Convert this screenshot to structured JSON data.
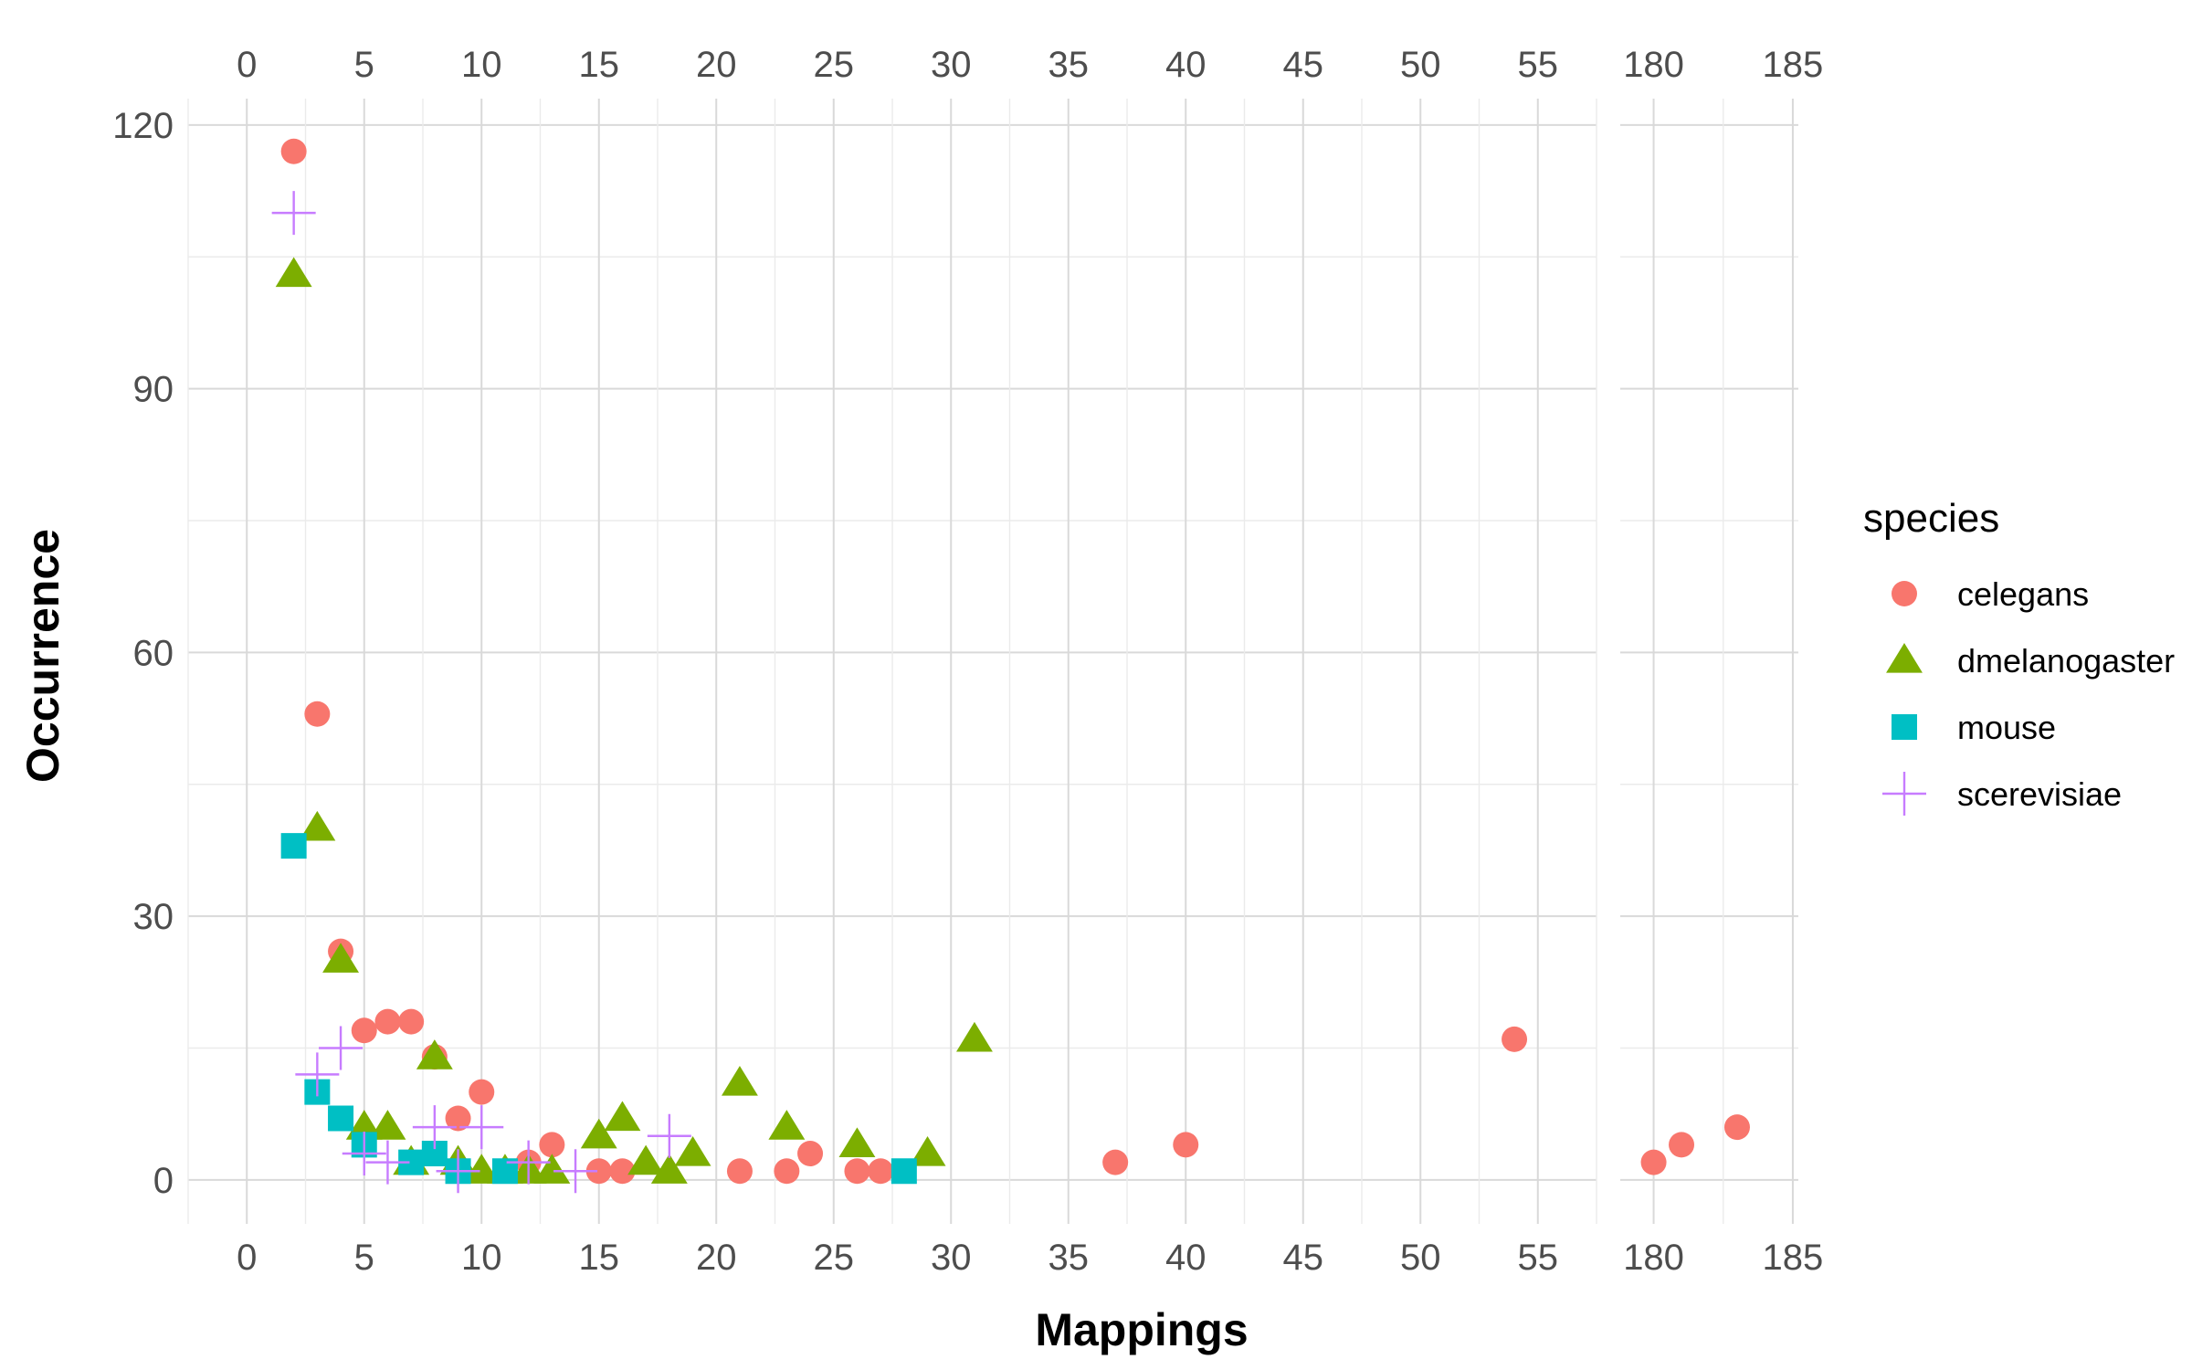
{
  "chart_data": {
    "type": "scatter",
    "title": "",
    "xlabel": "Mappings",
    "ylabel": "Occurrence",
    "grid": true,
    "legend": {
      "title": "species",
      "placement": "right"
    },
    "x_axis_break": true,
    "panels": [
      {
        "xlim": [
          -2.5,
          57.5
        ],
        "xticks": [
          0,
          5,
          10,
          15,
          20,
          25,
          30,
          35,
          40,
          45,
          50,
          55
        ]
      },
      {
        "xlim": [
          178.8,
          185.2
        ],
        "xticks": [
          180,
          185
        ]
      }
    ],
    "ylim": [
      -5,
      123
    ],
    "yticks": [
      0,
      30,
      60,
      90,
      120
    ],
    "series": [
      {
        "name": "celegans",
        "shape": "circle",
        "color": "#F8766D",
        "points": [
          [
            2,
            117
          ],
          [
            3,
            53
          ],
          [
            4,
            26
          ],
          [
            5,
            17
          ],
          [
            6,
            18
          ],
          [
            7,
            18
          ],
          [
            8,
            14
          ],
          [
            9,
            7
          ],
          [
            10,
            10
          ],
          [
            12,
            2
          ],
          [
            13,
            4
          ],
          [
            15,
            1
          ],
          [
            16,
            1
          ],
          [
            21,
            1
          ],
          [
            23,
            1
          ],
          [
            24,
            3
          ],
          [
            26,
            1
          ],
          [
            27,
            1
          ],
          [
            37,
            2
          ],
          [
            40,
            4
          ],
          [
            54,
            16
          ],
          [
            180,
            2
          ],
          [
            181,
            4
          ],
          [
            183,
            6
          ]
        ]
      },
      {
        "name": "dmelanogaster",
        "shape": "triangle",
        "color": "#7CAE00",
        "points": [
          [
            2,
            103
          ],
          [
            3,
            40
          ],
          [
            4,
            25
          ],
          [
            5,
            6
          ],
          [
            6,
            6
          ],
          [
            7,
            2
          ],
          [
            8,
            14
          ],
          [
            9,
            2
          ],
          [
            10,
            1
          ],
          [
            11,
            1
          ],
          [
            12,
            1
          ],
          [
            13,
            1
          ],
          [
            15,
            5
          ],
          [
            16,
            7
          ],
          [
            17,
            2
          ],
          [
            18,
            1
          ],
          [
            19,
            3
          ],
          [
            21,
            11
          ],
          [
            23,
            6
          ],
          [
            26,
            4
          ],
          [
            29,
            3
          ],
          [
            31,
            16
          ]
        ]
      },
      {
        "name": "mouse",
        "shape": "square",
        "color": "#00BFC4",
        "points": [
          [
            2,
            38
          ],
          [
            3,
            10
          ],
          [
            4,
            7
          ],
          [
            5,
            4
          ],
          [
            7,
            2
          ],
          [
            8,
            3
          ],
          [
            9,
            1
          ],
          [
            11,
            1
          ],
          [
            28,
            1
          ]
        ]
      },
      {
        "name": "scerevisiae",
        "shape": "plus",
        "color": "#C77CFF",
        "points": [
          [
            2,
            110
          ],
          [
            3,
            12
          ],
          [
            4,
            15
          ],
          [
            5,
            3
          ],
          [
            6,
            2
          ],
          [
            8,
            6
          ],
          [
            9,
            1
          ],
          [
            10,
            6
          ],
          [
            12,
            2
          ],
          [
            14,
            1
          ],
          [
            18,
            5
          ]
        ]
      }
    ]
  }
}
